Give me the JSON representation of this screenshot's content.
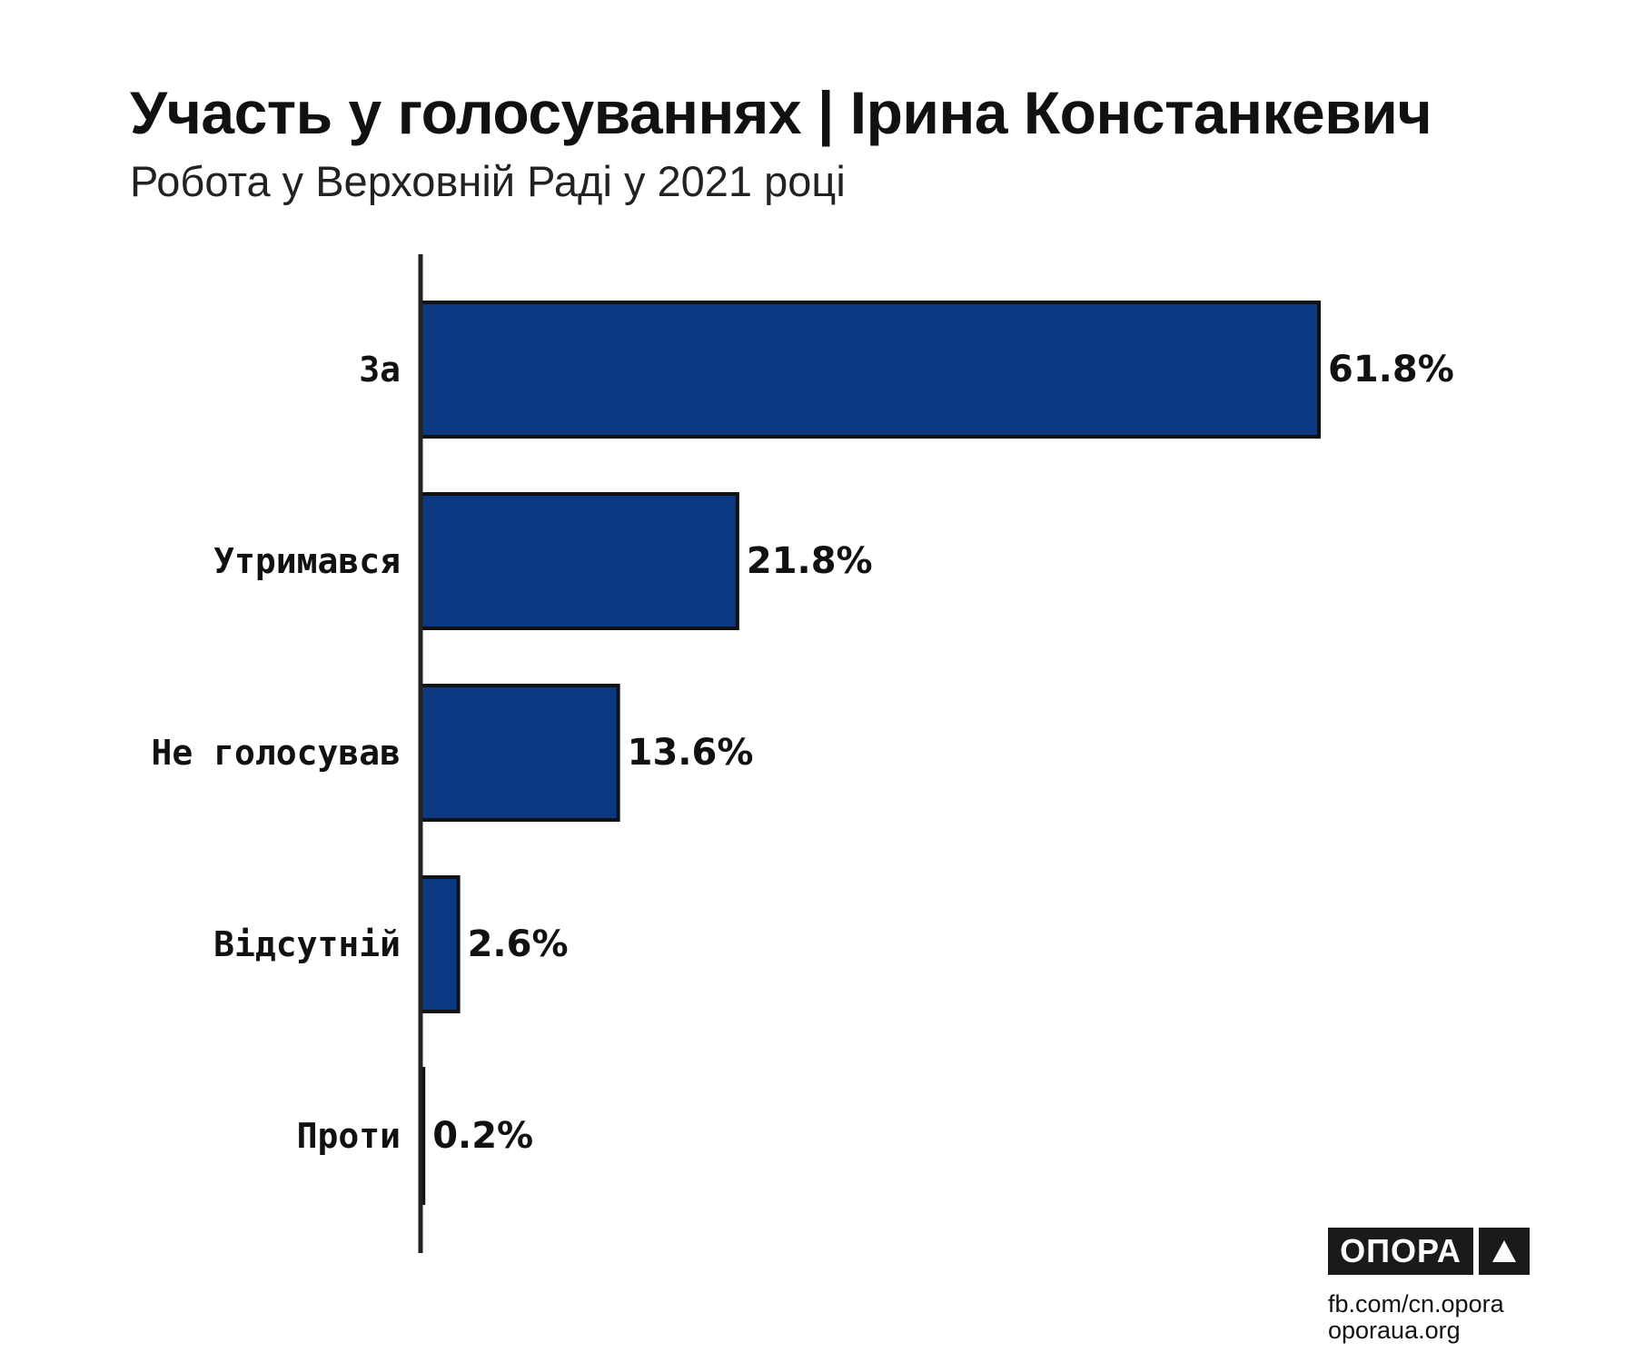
{
  "chart_data": {
    "type": "bar",
    "orientation": "horizontal",
    "title": "Участь у голосуваннях | Ірина Констанкевич",
    "subtitle": "Робота у Верховній Раді у 2021 році",
    "categories": [
      "За",
      "Утримався",
      "Не голосував",
      "Відсутній",
      "Проти"
    ],
    "values": [
      61.8,
      21.8,
      13.6,
      2.6,
      0.2
    ],
    "value_labels": [
      "61.8%",
      "21.8%",
      "13.6%",
      "2.6%",
      "0.2%"
    ],
    "unit": "%",
    "xlim": [
      0,
      100
    ],
    "grid": false,
    "legend": "none",
    "colors": {
      "bar": "#0b3a82",
      "bar_outline": "#111111",
      "axis": "#222222"
    }
  },
  "branding": {
    "logo_text": "ОПОРА",
    "logo_icon": "triangle-up-icon",
    "links": [
      "fb.com/cn.opora",
      "oporaua.org"
    ]
  }
}
